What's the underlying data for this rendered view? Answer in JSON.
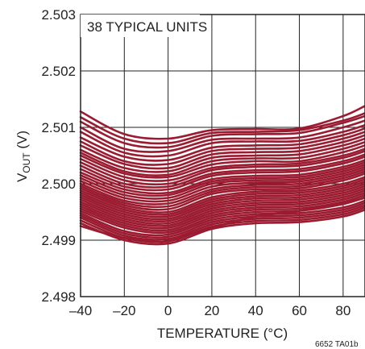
{
  "chart_data": {
    "type": "line",
    "title": "",
    "annotation": "38 TYPICAL UNITS",
    "xlabel": "TEMPERATURE (°C)",
    "ylabel": {
      "main": "V",
      "sub": "OUT",
      "rest": " (V)"
    },
    "xlim": [
      -40,
      90
    ],
    "ylim": [
      2.498,
      2.503
    ],
    "xticks": [
      -40,
      -20,
      0,
      20,
      40,
      60,
      80
    ],
    "xtick_labels": [
      "–40",
      "–20",
      "0",
      "20",
      "40",
      "60",
      "80"
    ],
    "yticks": [
      2.498,
      2.499,
      2.5,
      2.501,
      2.502,
      2.503
    ],
    "ytick_labels": [
      "2.498",
      "2.499",
      "2.500",
      "2.501",
      "2.502",
      "2.503"
    ],
    "grid": true,
    "series_color": "#9b1b30",
    "x": [
      -40,
      -20,
      0,
      20,
      40,
      60,
      80,
      90
    ],
    "series": [
      {
        "values": [
          2.50128,
          2.50088,
          2.5008,
          2.50095,
          2.50097,
          2.50098,
          2.5012,
          2.50138
        ]
      },
      {
        "values": [
          2.50118,
          2.5008,
          2.50072,
          2.5009,
          2.50092,
          2.50095,
          2.50112,
          2.50125
        ]
      },
      {
        "values": [
          2.5011,
          2.50072,
          2.50065,
          2.50085,
          2.50088,
          2.5009,
          2.50108,
          2.5012
        ]
      },
      {
        "values": [
          2.501,
          2.50062,
          2.50058,
          2.50078,
          2.5008,
          2.50082,
          2.501,
          2.50112
        ]
      },
      {
        "values": [
          2.50092,
          2.50055,
          2.5005,
          2.50072,
          2.50075,
          2.50076,
          2.50092,
          2.50104
        ]
      },
      {
        "values": [
          2.50082,
          2.50048,
          2.50042,
          2.50064,
          2.50068,
          2.5007,
          2.50086,
          2.50098
        ]
      },
      {
        "values": [
          2.50075,
          2.5004,
          2.50035,
          2.50058,
          2.50062,
          2.50064,
          2.5008,
          2.50092
        ]
      },
      {
        "values": [
          2.50068,
          2.50035,
          2.50028,
          2.50052,
          2.50056,
          2.50058,
          2.50074,
          2.50086
        ]
      },
      {
        "values": [
          2.5006,
          2.50028,
          2.50022,
          2.50046,
          2.5005,
          2.50052,
          2.50068,
          2.5008
        ]
      },
      {
        "values": [
          2.50055,
          2.50022,
          2.50016,
          2.5004,
          2.50045,
          2.50046,
          2.50062,
          2.50074
        ]
      },
      {
        "values": [
          2.5005,
          2.50018,
          2.50012,
          2.50034,
          2.5004,
          2.5004,
          2.50056,
          2.50068
        ]
      },
      {
        "values": [
          2.50044,
          2.50012,
          2.50006,
          2.50028,
          2.50034,
          2.50036,
          2.5005,
          2.50062
        ]
      },
      {
        "values": [
          2.50038,
          2.50006,
          2.5,
          2.50024,
          2.5003,
          2.50032,
          2.50046,
          2.50058
        ]
      },
      {
        "values": [
          2.50032,
          2.5,
          2.49995,
          2.50018,
          2.50024,
          2.50026,
          2.5004,
          2.50052
        ]
      },
      {
        "values": [
          2.50026,
          2.49995,
          2.4999,
          2.50014,
          2.5002,
          2.50022,
          2.50036,
          2.50048
        ]
      },
      {
        "values": [
          2.5002,
          2.4999,
          2.49984,
          2.50008,
          2.50014,
          2.50016,
          2.5003,
          2.50042
        ]
      },
      {
        "values": [
          2.50015,
          2.49985,
          2.4998,
          2.50004,
          2.5001,
          2.50012,
          2.50026,
          2.50038
        ]
      },
      {
        "values": [
          2.5001,
          2.4998,
          2.49975,
          2.5,
          2.50006,
          2.50008,
          2.50022,
          2.50034
        ]
      },
      {
        "values": [
          2.50005,
          2.49975,
          2.4997,
          2.49995,
          2.50002,
          2.50004,
          2.50018,
          2.5003
        ]
      },
      {
        "values": [
          2.5,
          2.4997,
          2.49965,
          2.4999,
          2.49998,
          2.5,
          2.50014,
          2.50026
        ]
      },
      {
        "values": [
          2.49996,
          2.49966,
          2.4996,
          2.49986,
          2.49994,
          2.49996,
          2.5001,
          2.50022
        ]
      },
      {
        "values": [
          2.49992,
          2.49962,
          2.49955,
          2.49982,
          2.4999,
          2.49992,
          2.50006,
          2.50018
        ]
      },
      {
        "values": [
          2.49988,
          2.49958,
          2.4995,
          2.49976,
          2.49986,
          2.49988,
          2.5,
          2.50012
        ]
      },
      {
        "values": [
          2.49984,
          2.49954,
          2.49946,
          2.49972,
          2.49982,
          2.49984,
          2.49996,
          2.50008
        ]
      },
      {
        "values": [
          2.4998,
          2.4995,
          2.49942,
          2.49968,
          2.49978,
          2.4998,
          2.49992,
          2.50004
        ]
      },
      {
        "values": [
          2.49976,
          2.49946,
          2.49938,
          2.49964,
          2.49974,
          2.49976,
          2.49988,
          2.5
        ]
      },
      {
        "values": [
          2.49972,
          2.49942,
          2.49934,
          2.4996,
          2.4997,
          2.49972,
          2.49984,
          2.49996
        ]
      },
      {
        "values": [
          2.49968,
          2.49938,
          2.4993,
          2.49956,
          2.49966,
          2.49968,
          2.4998,
          2.49992
        ]
      },
      {
        "values": [
          2.49964,
          2.49934,
          2.49926,
          2.49952,
          2.49962,
          2.49964,
          2.49976,
          2.49988
        ]
      },
      {
        "values": [
          2.4996,
          2.4993,
          2.49922,
          2.49948,
          2.49958,
          2.4996,
          2.49972,
          2.49984
        ]
      },
      {
        "values": [
          2.49956,
          2.49926,
          2.49918,
          2.49944,
          2.49954,
          2.49956,
          2.49968,
          2.4998
        ]
      },
      {
        "values": [
          2.49952,
          2.49922,
          2.49914,
          2.4994,
          2.4995,
          2.49952,
          2.49964,
          2.49976
        ]
      },
      {
        "values": [
          2.49948,
          2.49916,
          2.4991,
          2.49936,
          2.49946,
          2.49948,
          2.49958,
          2.4997
        ]
      },
      {
        "values": [
          2.49944,
          2.49912,
          2.49906,
          2.49932,
          2.49942,
          2.49944,
          2.49954,
          2.49966
        ]
      },
      {
        "values": [
          2.4994,
          2.49908,
          2.49902,
          2.49928,
          2.49938,
          2.4994,
          2.4995,
          2.49962
        ]
      },
      {
        "values": [
          2.49935,
          2.49904,
          2.49898,
          2.49924,
          2.49934,
          2.49936,
          2.49946,
          2.49958
        ]
      },
      {
        "values": [
          2.4993,
          2.499,
          2.49894,
          2.4992,
          2.4993,
          2.49932,
          2.49942,
          2.49954
        ]
      },
      {
        "values": [
          2.49925,
          2.49904,
          2.49902,
          2.49922,
          2.49942,
          2.49952,
          2.49965,
          2.49975
        ]
      }
    ]
  },
  "figure_ref": "6652 TA01b"
}
